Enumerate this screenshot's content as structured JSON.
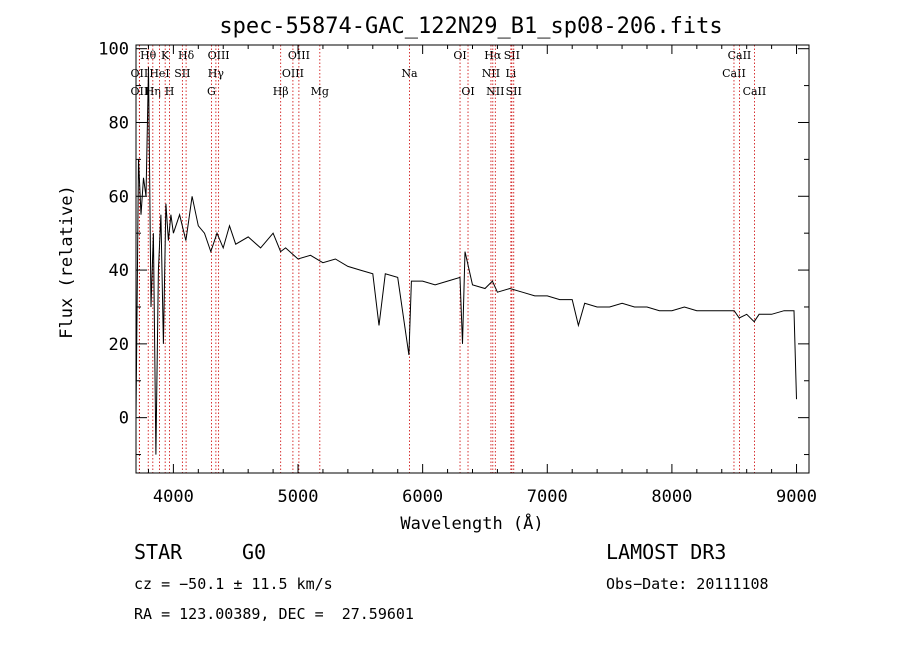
{
  "chart_data": {
    "type": "line",
    "title": "spec-55874-GAC_122N29_B1_sp08-206.fits",
    "xlabel": "Wavelength (Å)",
    "ylabel": "Flux (relative)",
    "xlim": [
      3700,
      9100
    ],
    "ylim": [
      -15,
      101
    ],
    "xticks": [
      4000,
      5000,
      6000,
      7000,
      8000,
      9000
    ],
    "yticks": [
      0,
      20,
      40,
      60,
      80,
      100
    ],
    "series": [
      {
        "name": "flux",
        "x": [
          3700,
          3720,
          3740,
          3760,
          3780,
          3800,
          3820,
          3840,
          3860,
          3880,
          3900,
          3920,
          3940,
          3960,
          3980,
          4000,
          4050,
          4100,
          4150,
          4200,
          4250,
          4300,
          4350,
          4400,
          4450,
          4500,
          4600,
          4700,
          4800,
          4860,
          4900,
          5000,
          5100,
          5200,
          5300,
          5400,
          5500,
          5600,
          5650,
          5700,
          5800,
          5890,
          5910,
          6000,
          6100,
          6200,
          6300,
          6320,
          6340,
          6400,
          6500,
          6560,
          6600,
          6700,
          6800,
          6900,
          7000,
          7100,
          7200,
          7250,
          7300,
          7400,
          7500,
          7600,
          7700,
          7800,
          7900,
          8000,
          8100,
          8200,
          8300,
          8400,
          8500,
          8540,
          8600,
          8660,
          8700,
          8800,
          8900,
          8980,
          9000
        ],
        "y": [
          0,
          70,
          55,
          65,
          60,
          95,
          30,
          50,
          -10,
          40,
          55,
          20,
          58,
          48,
          55,
          50,
          55,
          48,
          60,
          52,
          50,
          45,
          50,
          46,
          52,
          47,
          49,
          46,
          50,
          45,
          46,
          43,
          44,
          42,
          43,
          41,
          40,
          39,
          25,
          39,
          38,
          17,
          37,
          37,
          36,
          37,
          38,
          20,
          45,
          36,
          35,
          37,
          34,
          35,
          34,
          33,
          33,
          32,
          32,
          25,
          31,
          30,
          30,
          31,
          30,
          30,
          29,
          29,
          30,
          29,
          29,
          29,
          29,
          27,
          28,
          26,
          28,
          28,
          29,
          29,
          5
        ]
      }
    ],
    "lines": [
      {
        "name": "OII",
        "wave": 3727,
        "row": 3
      },
      {
        "name": "Hθ",
        "wave": 3798,
        "row": 1
      },
      {
        "name": "OII",
        "wave": 3727,
        "row": 2
      },
      {
        "name": "Hη",
        "wave": 3835,
        "row": 3
      },
      {
        "name": "HeI",
        "wave": 3889,
        "row": 2
      },
      {
        "name": "K",
        "wave": 3934,
        "row": 1
      },
      {
        "name": "H",
        "wave": 3969,
        "row": 3
      },
      {
        "name": "SII",
        "wave": 4072,
        "row": 2
      },
      {
        "name": "Hδ",
        "wave": 4102,
        "row": 1
      },
      {
        "name": "G",
        "wave": 4305,
        "row": 3
      },
      {
        "name": "Hγ",
        "wave": 4341,
        "row": 2
      },
      {
        "name": "OIII",
        "wave": 4363,
        "row": 1
      },
      {
        "name": "Hβ",
        "wave": 4861,
        "row": 3
      },
      {
        "name": "OIII",
        "wave": 4959,
        "row": 2
      },
      {
        "name": "OIII",
        "wave": 5007,
        "row": 1
      },
      {
        "name": "Mg",
        "wave": 5175,
        "row": 3
      },
      {
        "name": "Na",
        "wave": 5894,
        "row": 2
      },
      {
        "name": "OI",
        "wave": 6300,
        "row": 1
      },
      {
        "name": "OI",
        "wave": 6364,
        "row": 3
      },
      {
        "name": "NII",
        "wave": 6548,
        "row": 2
      },
      {
        "name": "Hα",
        "wave": 6563,
        "row": 1
      },
      {
        "name": "NII",
        "wave": 6583,
        "row": 3
      },
      {
        "name": "Li",
        "wave": 6708,
        "row": 2
      },
      {
        "name": "SII",
        "wave": 6716,
        "row": 1
      },
      {
        "name": "SII",
        "wave": 6731,
        "row": 3
      },
      {
        "name": "CaII",
        "wave": 8498,
        "row": 2
      },
      {
        "name": "CaII",
        "wave": 8542,
        "row": 1
      },
      {
        "name": "CaII",
        "wave": 8662,
        "row": 3
      }
    ]
  },
  "info": {
    "class": "STAR",
    "subclass": "G0",
    "survey": "LAMOST DR3",
    "cz": "cz = −50.1 ± 11.5 km/s",
    "obs_date": "Obs−Date: 20111108",
    "coords": "RA = 123.00389, DEC =  27.59601"
  },
  "colors": {
    "axis": "#000000",
    "spectrum": "#000000",
    "line_marker": "#cc0000",
    "background": "#ffffff"
  }
}
